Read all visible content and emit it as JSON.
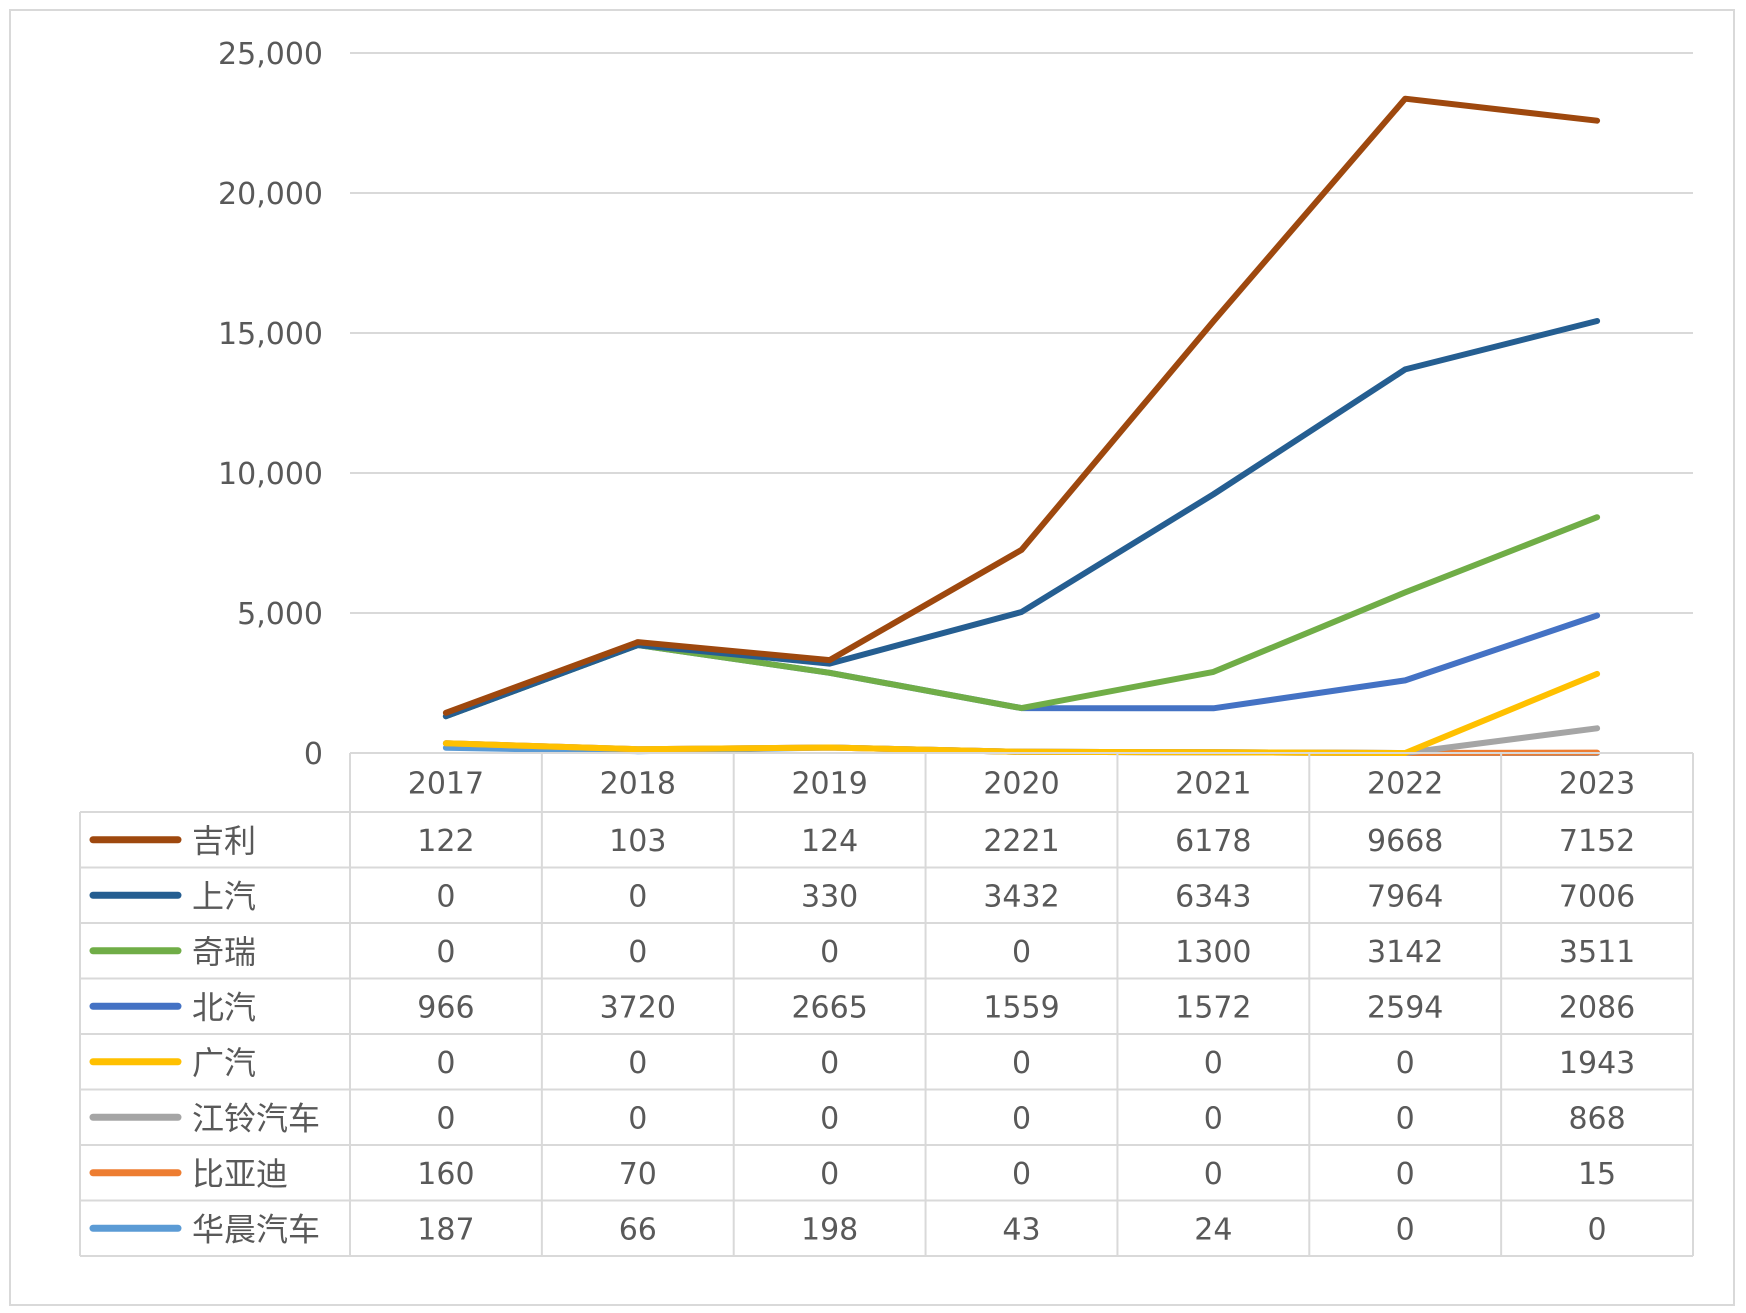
{
  "chart_data": {
    "type": "line",
    "stacked": true,
    "title": "",
    "xlabel": "",
    "ylabel": "",
    "ylim": [
      0,
      25000
    ],
    "yticks": [
      "0",
      "5,000",
      "10,000",
      "15,000",
      "20,000",
      "25,000"
    ],
    "ytick_values": [
      0,
      5000,
      10000,
      15000,
      20000,
      25000
    ],
    "grid": true,
    "legend": "data-table",
    "categories": [
      "2017",
      "2018",
      "2019",
      "2020",
      "2021",
      "2022",
      "2023"
    ],
    "series": [
      {
        "name": "吉利",
        "color": "#9E480E",
        "values": [
          122,
          103,
          124,
          2221,
          6178,
          9668,
          7152
        ]
      },
      {
        "name": "上汽",
        "color": "#255E91",
        "values": [
          0,
          0,
          330,
          3432,
          6343,
          7964,
          7006
        ]
      },
      {
        "name": "奇瑞",
        "color": "#70AD47",
        "values": [
          0,
          0,
          0,
          0,
          1300,
          3142,
          3511
        ]
      },
      {
        "name": "北汽",
        "color": "#4472C4",
        "values": [
          966,
          3720,
          2665,
          1559,
          1572,
          2594,
          2086
        ]
      },
      {
        "name": "广汽",
        "color": "#FFC000",
        "values": [
          0,
          0,
          0,
          0,
          0,
          0,
          1943
        ]
      },
      {
        "name": "江铃汽车",
        "color": "#A5A5A5",
        "values": [
          0,
          0,
          0,
          0,
          0,
          0,
          868
        ]
      },
      {
        "name": "比亚迪",
        "color": "#ED7D31",
        "values": [
          160,
          70,
          0,
          0,
          0,
          0,
          15
        ]
      },
      {
        "name": "华晨汽车",
        "color": "#5B9BD5",
        "values": [
          187,
          66,
          198,
          43,
          24,
          0,
          0
        ]
      }
    ]
  }
}
